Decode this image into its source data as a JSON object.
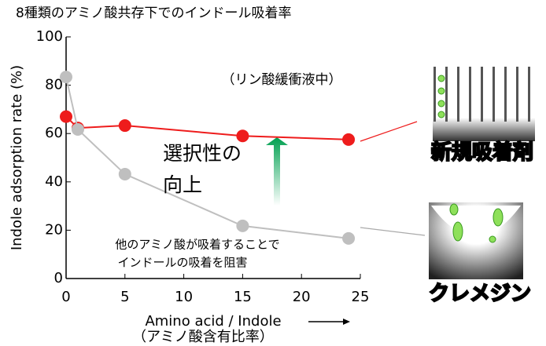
{
  "chart_data": {
    "type": "line",
    "title": "8種類のアミノ酸共存下でのインドール吸着率",
    "x_label": "Amino acid / Indole",
    "x_sublabel": "（アミノ酸含有比率）",
    "y_label": "Indole adsorption rate (%)",
    "x": [
      0,
      1,
      5,
      15,
      24
    ],
    "series": [
      {
        "name": "新規吸着剤",
        "color": "#ee1c1c",
        "values": [
          67,
          62.3,
          63.3,
          59,
          57.5
        ]
      },
      {
        "name": "クレメジン",
        "color": "#bfbfbf",
        "values": [
          83.4,
          61.7,
          43.2,
          21.8,
          16.6
        ]
      }
    ],
    "xlim": [
      0,
      25
    ],
    "xticks": [
      0,
      5,
      10,
      15,
      20,
      25
    ],
    "ylim": [
      0,
      100
    ],
    "yticks": [
      0,
      20,
      40,
      60,
      80,
      100
    ],
    "grid": false,
    "annotations": [
      "（リン酸緩衝液中）",
      "選択性の",
      "向上",
      "他のアミノ酸が吸着することで",
      "インドールの吸着を阻害"
    ]
  }
}
